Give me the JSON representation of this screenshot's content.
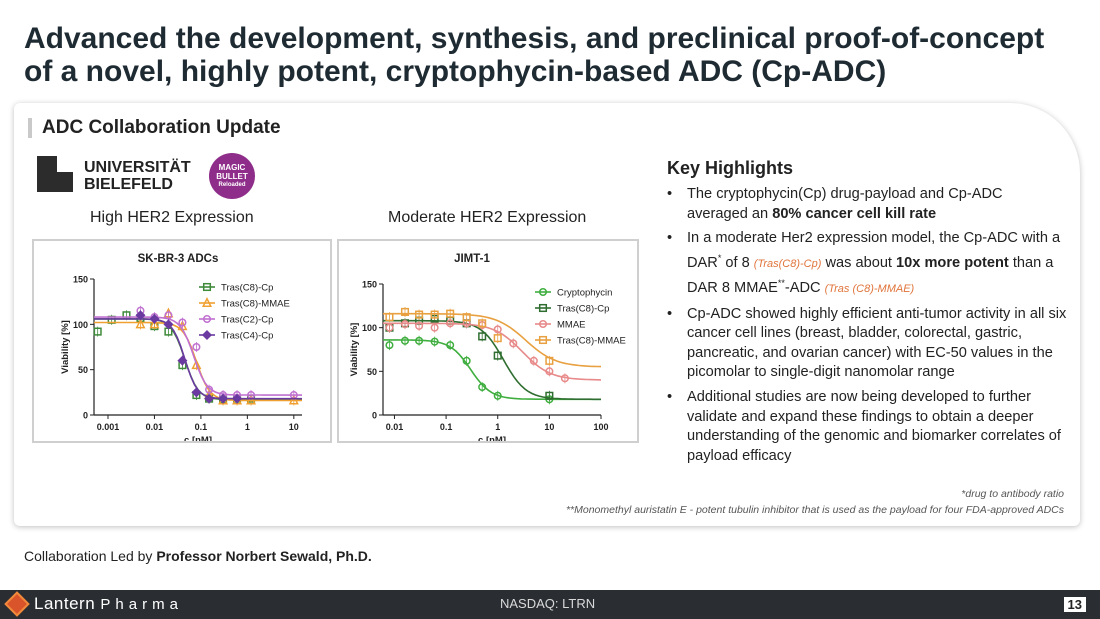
{
  "title": "Advanced the development, synthesis, and preclinical proof-of-concept of a novel, highly potent, cryptophycin-based ADC (Cp-ADC)",
  "section_title": "ADC Collaboration Update",
  "university": {
    "line1": "UNIVERSITÄT",
    "line2": "BIELEFELD"
  },
  "magic_bullet": {
    "line1": "MAGIC",
    "line2": "BULLET",
    "line3": "Reloaded"
  },
  "plot_labels": {
    "left": "High HER2 Expression",
    "right": "Moderate HER2 Expression"
  },
  "key_highlights": {
    "title": "Key Highlights",
    "b1_a": "The cryptophycin(Cp) drug-payload and Cp-ADC averaged an ",
    "b1_b": "80% cancer cell kill rate",
    "b2_a": "In a moderate Her2 expression model, the Cp-ADC with a DAR",
    "b2_star": "*",
    "b2_b": " of 8 ",
    "b2_c": "(Tras(C8)-Cp)",
    "b2_d": " was about ",
    "b2_e": "10x more potent",
    "b2_f": " than a DAR 8 MMAE",
    "b2_star2": "**",
    "b2_g": "-ADC ",
    "b2_h": "(Tras (C8)-MMAE)",
    "b3": "Cp-ADC showed highly efficient anti-tumor activity in all six cancer cell lines (breast, bladder, colorectal, gastric, pancreatic, and ovarian cancer) with EC-50 values in the picomolar to single-digit nanomolar range",
    "b4": "Additional studies are now being developed to further validate and expand these findings to obtain a deeper understanding of the genomic and biomarker correlates of payload efficacy"
  },
  "footnotes": {
    "f1": "*drug to antibody ratio",
    "f2": "**Monomethyl auristatin E - potent tubulin inhibitor that is used as the payload for four FDA-approved ADCs"
  },
  "collab": {
    "prefix": "Collaboration Led by ",
    "name": "Professor Norbert Sewald, Ph.D."
  },
  "footer": {
    "company": "Lantern",
    "company2": "Pharma",
    "ticker": "NASDAQ: LTRN",
    "page": "13"
  },
  "chart_data": [
    {
      "type": "scatter",
      "title": "SK-BR-3 ADCs",
      "xlabel": "c [nM]",
      "ylabel": "Viability [%]",
      "xscale": "log",
      "xlim": [
        0.0005,
        15
      ],
      "ylim": [
        0,
        150
      ],
      "xticks": [
        "0.001",
        "0.01",
        "0.1",
        "1",
        "10"
      ],
      "yticks": [
        "0",
        "50",
        "100",
        "150"
      ],
      "legend_position": "top-right",
      "series": [
        {
          "name": "Tras(C8)-Cp",
          "color": "#3e8a3a",
          "marker": "square",
          "x": [
            0.0006,
            0.0012,
            0.0025,
            0.005,
            0.01,
            0.02,
            0.04,
            0.08,
            0.15,
            0.3,
            0.6,
            1.2
          ],
          "y": [
            92,
            105,
            110,
            107,
            98,
            92,
            55,
            22,
            18,
            17,
            18,
            18
          ],
          "fit": {
            "top": 106,
            "bottom": 17,
            "ec50": 0.045,
            "hill": 3.0
          }
        },
        {
          "name": "Tras(C8)-MMAE",
          "color": "#f0a030",
          "marker": "triangle",
          "x": [
            0.005,
            0.01,
            0.02,
            0.04,
            0.08,
            0.15,
            0.3,
            0.6,
            1.2,
            10
          ],
          "y": [
            100,
            100,
            112,
            98,
            55,
            22,
            16,
            16,
            16,
            16
          ],
          "fit": {
            "top": 102,
            "bottom": 16,
            "ec50": 0.08,
            "hill": 3.0
          }
        },
        {
          "name": "Tras(C2)-Cp",
          "color": "#c070d0",
          "marker": "circle",
          "x": [
            0.005,
            0.01,
            0.02,
            0.04,
            0.08,
            0.15,
            0.3,
            0.6,
            1.2,
            10
          ],
          "y": [
            115,
            108,
            110,
            102,
            75,
            28,
            22,
            22,
            22,
            22
          ],
          "fit": {
            "top": 108,
            "bottom": 22,
            "ec50": 0.07,
            "hill": 3.0
          }
        },
        {
          "name": "Tras(C4)-Cp",
          "color": "#6a3aa0",
          "marker": "diamond",
          "x": [
            0.005,
            0.01,
            0.02,
            0.04,
            0.08,
            0.15,
            0.3,
            0.6
          ],
          "y": [
            110,
            106,
            100,
            60,
            25,
            18,
            18,
            18
          ],
          "fit": {
            "top": 106,
            "bottom": 18,
            "ec50": 0.045,
            "hill": 3.2
          }
        }
      ]
    },
    {
      "type": "scatter",
      "title": "JIMT-1",
      "xlabel": "c [nM]",
      "ylabel": "Viability [%]",
      "xscale": "log",
      "xlim": [
        0.006,
        100
      ],
      "ylim": [
        0,
        150
      ],
      "xticks": [
        "0.01",
        "0.1",
        "1",
        "10",
        "100"
      ],
      "yticks": [
        "0",
        "50",
        "100",
        "150"
      ],
      "legend_position": "top-right",
      "series": [
        {
          "name": "Cryptophycin",
          "color": "#3fae3f",
          "marker": "circle",
          "x": [
            0.008,
            0.016,
            0.03,
            0.06,
            0.12,
            0.25,
            0.5,
            1,
            10
          ],
          "y": [
            80,
            85,
            85,
            84,
            80,
            62,
            32,
            22,
            18
          ],
          "fit": {
            "top": 86,
            "bottom": 18,
            "ec50": 0.3,
            "hill": 2.2
          }
        },
        {
          "name": "Tras(C8)-Cp",
          "color": "#2f6e30",
          "marker": "square",
          "x": [
            0.008,
            0.016,
            0.03,
            0.06,
            0.12,
            0.25,
            0.5,
            1,
            10
          ],
          "y": [
            100,
            105,
            108,
            110,
            108,
            105,
            90,
            68,
            22
          ],
          "fit": {
            "top": 108,
            "bottom": 18,
            "ec50": 1.3,
            "hill": 2.0
          }
        },
        {
          "name": "MMAE",
          "color": "#e88a8a",
          "marker": "circle",
          "x": [
            0.008,
            0.016,
            0.03,
            0.06,
            0.12,
            0.25,
            0.5,
            1,
            2,
            5,
            10,
            20
          ],
          "y": [
            100,
            104,
            102,
            100,
            105,
            105,
            103,
            98,
            82,
            62,
            50,
            42
          ],
          "fit": {
            "top": 105,
            "bottom": 40,
            "ec50": 3.0,
            "hill": 1.6
          }
        },
        {
          "name": "Tras(C8)-MMAE",
          "color": "#e8a040",
          "marker": "square",
          "x": [
            0.008,
            0.016,
            0.03,
            0.06,
            0.12,
            0.25,
            0.5,
            1,
            10
          ],
          "y": [
            112,
            118,
            115,
            115,
            116,
            112,
            105,
            88,
            62
          ],
          "fit": {
            "top": 116,
            "bottom": 55,
            "ec50": 3.5,
            "hill": 1.5
          }
        }
      ]
    }
  ]
}
